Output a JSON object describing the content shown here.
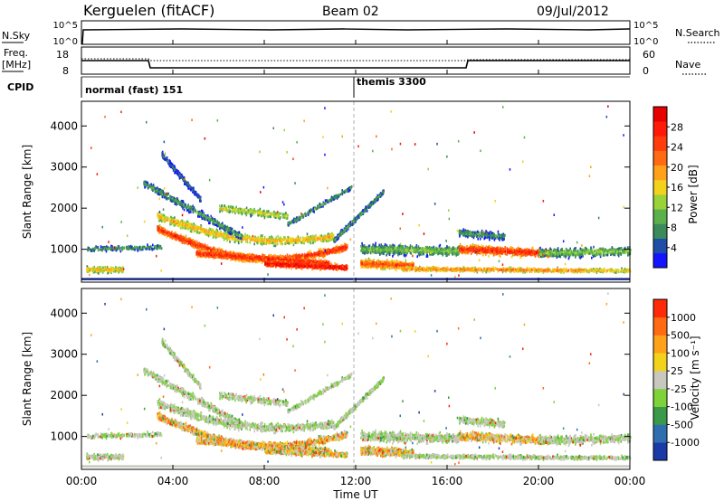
{
  "header": {
    "station": "Kerguelen (fitACF)",
    "beam": "Beam 02",
    "date": "09/Jul/2012"
  },
  "top_panels": {
    "nsky": {
      "label": "N.Sky",
      "ticks": [
        "10^5",
        "10^0"
      ]
    },
    "nsearch": {
      "label": "N.Search",
      "ticks": [
        "10^5",
        "10^0"
      ]
    },
    "freq": {
      "label_top": "Freq.",
      "label_bottom": "[MHz]",
      "ticks": [
        "18",
        "8"
      ]
    },
    "nave": {
      "label": "Nave",
      "ticks": [
        "60",
        "0"
      ]
    },
    "cpid": {
      "label": "CPID",
      "mode1": "normal (fast) 151",
      "mode2": "themis 3300"
    }
  },
  "x_axis": {
    "label": "Time UT",
    "ticks": [
      "00:00",
      "04:00",
      "08:00",
      "12:00",
      "16:00",
      "20:00",
      "00:00"
    ]
  },
  "chart_data": [
    {
      "type": "heatmap",
      "name": "power",
      "ylabel": "Slant Range [km]",
      "yticks": [
        "1000",
        "2000",
        "3000",
        "4000"
      ],
      "ylim": [
        200,
        4600
      ],
      "xlim": [
        0,
        24
      ],
      "colorbar": {
        "label": "Power [dB]",
        "ticks": [
          "4",
          "8",
          "12",
          "16",
          "20",
          "24",
          "28"
        ],
        "colors": [
          "#1414ff",
          "#1f4ea8",
          "#3b8a5a",
          "#5ab04a",
          "#9ad23a",
          "#f2d21a",
          "#ffa21a",
          "#ff6a12",
          "#ff3c0c",
          "#ff1a08",
          "#e60000"
        ]
      },
      "bands": [
        {
          "t0": 3.3,
          "t1": 11.6,
          "r0": 1500,
          "r1": 1050,
          "level": 9
        },
        {
          "t0": 5.0,
          "t1": 10.8,
          "r0": 800,
          "r1": 700,
          "level": 9
        },
        {
          "t0": 8.0,
          "t1": 11.6,
          "r0": 600,
          "r1": 550,
          "level": 10
        },
        {
          "t0": 12.2,
          "t1": 14.5,
          "r0": 650,
          "r1": 600,
          "level": 8
        },
        {
          "t0": 14.0,
          "t1": 22.0,
          "r0": 520,
          "r1": 480,
          "level": 7
        },
        {
          "t0": 16.5,
          "t1": 20.5,
          "r0": 1000,
          "r1": 900,
          "level": 9
        },
        {
          "t0": 0.2,
          "t1": 1.8,
          "r0": 500,
          "r1": 500,
          "level": 6
        }
      ]
    },
    {
      "type": "heatmap",
      "name": "velocity",
      "ylabel": "Slant Range [km]",
      "yticks": [
        "1000",
        "2000",
        "3000",
        "4000"
      ],
      "ylim": [
        200,
        4600
      ],
      "xlim": [
        0,
        24
      ],
      "colorbar": {
        "label": "Velocity [m s⁻¹]",
        "ticks": [
          "1000",
          "500",
          "100",
          "25",
          "-25",
          "-100",
          "-500",
          "-1000"
        ],
        "colors": [
          "#1a3aa8",
          "#2f6fb0",
          "#3a9a4a",
          "#7ed23a",
          "#c8c8c0",
          "#f2d21a",
          "#ffa21a",
          "#ff6a12",
          "#ff2a08"
        ]
      }
    }
  ]
}
